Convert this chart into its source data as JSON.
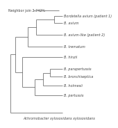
{
  "title": "Neighbor join 2.742%",
  "outgroup_label": "Achromobacter xylosoxidans xylosoxidans",
  "taxa": [
    "Bordetella avium (patient 1)",
    "B. avium",
    "B. avium-like (patient 2)",
    "B. trematum",
    "B. hinzii",
    "B. parapertussis",
    "B. bronchiseptica",
    "B. holmesii",
    "B. pertussis"
  ],
  "line_color": "#444444",
  "bg_color": "#ffffff",
  "label_fontsize": 3.5,
  "title_fontsize": 3.5,
  "outgroup_fontsize": 3.5
}
